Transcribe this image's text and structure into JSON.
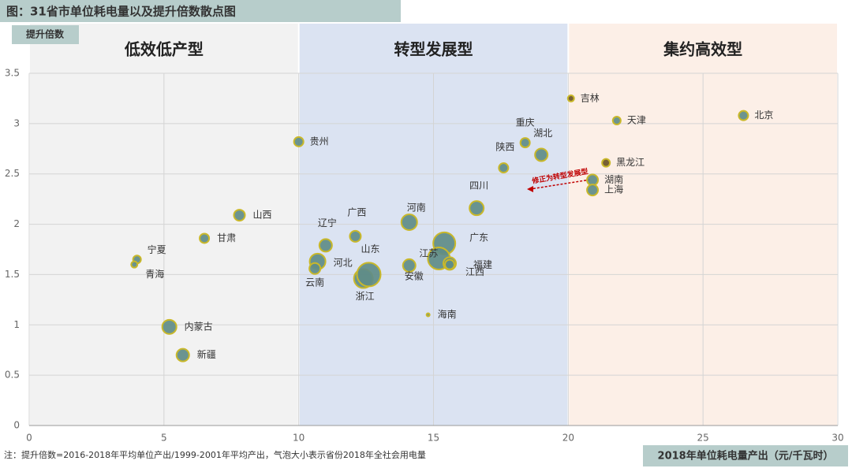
{
  "chart_data": {
    "type": "bubble",
    "title": "图：31省市单位耗电量以及提升倍数散点图",
    "y_label": "提升倍数",
    "x_label": "2018年单位耗电量产出（元/千瓦时）",
    "note": "注：提升倍数=2016-2018年平均单位产出/1999-2001年平均产出，气泡大小表示省份2018年全社会用电量",
    "annotation": "修正为转型发展型",
    "regions": [
      {
        "name": "低效低产型",
        "range": [
          0,
          10
        ],
        "color": "#f2f2f2"
      },
      {
        "name": "转型发展型",
        "range": [
          10,
          20
        ],
        "color": "#dbe3f2"
      },
      {
        "name": "集约高效型",
        "range": [
          20,
          30
        ],
        "color": "#fcefe7"
      }
    ],
    "xlim": [
      0,
      30
    ],
    "ylim": [
      0,
      3.5
    ],
    "xticks": [
      0,
      5,
      10,
      15,
      20,
      25,
      30
    ],
    "yticks": [
      0,
      0.5,
      1,
      1.5,
      2,
      2.5,
      3,
      3.5
    ],
    "grid": true,
    "color": "#5f8c88",
    "edge_color": "#c9b82a",
    "categories": [
      "吉林",
      "天津",
      "北京",
      "黑龙江",
      "湖南",
      "上海",
      "重庆",
      "湖北",
      "陕西",
      "四川",
      "河南",
      "广东",
      "江苏",
      "福建",
      "江西",
      "安徽",
      "海南",
      "浙江",
      "山东",
      "广西",
      "辽宁",
      "河北",
      "云南",
      "贵州",
      "山西",
      "甘肃",
      "宁夏",
      "青海",
      "内蒙古",
      "新疆"
    ],
    "x": [
      20.1,
      21.8,
      26.5,
      21.4,
      20.9,
      20.9,
      18.4,
      19.0,
      17.6,
      16.6,
      14.1,
      15.4,
      15.2,
      15.6,
      15.6,
      14.1,
      14.8,
      12.4,
      12.6,
      12.1,
      11.0,
      10.7,
      10.6,
      10.0,
      7.8,
      6.5,
      4.0,
      3.9,
      5.2,
      5.7
    ],
    "y": [
      3.25,
      3.03,
      3.08,
      2.61,
      2.44,
      2.34,
      2.81,
      2.69,
      2.56,
      2.16,
      2.02,
      1.81,
      1.66,
      1.61,
      1.6,
      1.59,
      1.1,
      1.46,
      1.5,
      1.88,
      1.79,
      1.63,
      1.56,
      2.82,
      2.09,
      1.86,
      1.65,
      1.6,
      0.98,
      0.7
    ],
    "sizes": [
      4,
      5,
      6,
      5,
      7,
      7,
      6,
      8,
      6,
      9,
      10,
      14,
      14,
      8,
      6,
      8,
      2,
      12,
      15,
      7,
      8,
      10,
      7,
      6,
      7,
      6,
      5,
      4,
      9,
      8
    ]
  }
}
